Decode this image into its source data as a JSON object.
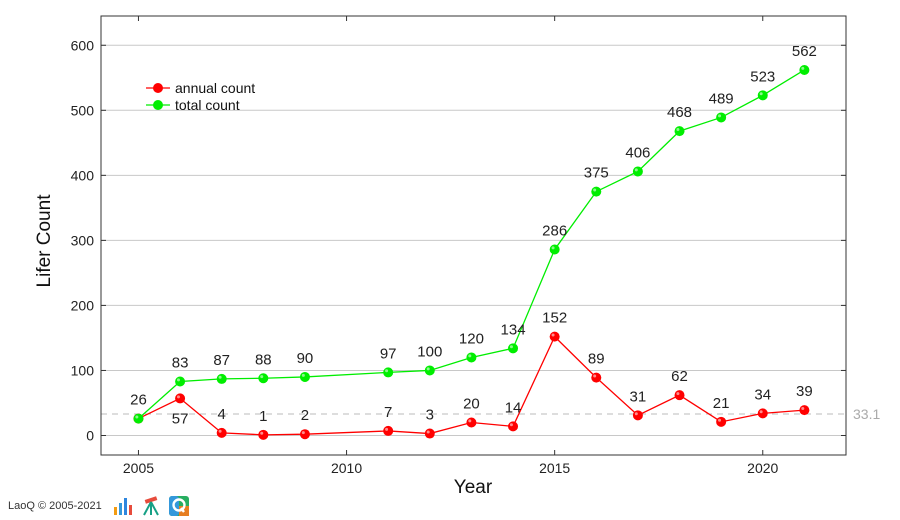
{
  "chart_data": {
    "type": "line",
    "title": "",
    "xlabel": "Year",
    "ylabel": "Lifer Count",
    "xlim": [
      2004.1,
      2022
    ],
    "ylim": [
      -30,
      645
    ],
    "xticks": [
      2005,
      2010,
      2015,
      2020
    ],
    "yticks": [
      0,
      100,
      200,
      300,
      400,
      500,
      600
    ],
    "grid": "horizontal",
    "legend_position": "top-left",
    "series": [
      {
        "name": "annual count",
        "color": "#ff0000",
        "x": [
          2005,
          2006,
          2007,
          2008,
          2009,
          2011,
          2012,
          2013,
          2014,
          2015,
          2016,
          2017,
          2018,
          2019,
          2020,
          2021
        ],
        "values": [
          26,
          57,
          4,
          1,
          2,
          7,
          3,
          20,
          14,
          152,
          89,
          31,
          62,
          21,
          34,
          39
        ],
        "label_pos": [
          "above",
          "below",
          "above",
          "above",
          "above",
          "above",
          "above",
          "above",
          "above",
          "above",
          "above",
          "above",
          "above",
          "above",
          "above",
          "above"
        ]
      },
      {
        "name": "total count",
        "color": "#00ee00",
        "x": [
          2005,
          2006,
          2007,
          2008,
          2009,
          2011,
          2012,
          2013,
          2014,
          2015,
          2016,
          2017,
          2018,
          2019,
          2020,
          2021
        ],
        "values": [
          26,
          83,
          87,
          88,
          90,
          97,
          100,
          120,
          134,
          286,
          375,
          406,
          468,
          489,
          523,
          562
        ],
        "label_pos": [
          "none",
          "above",
          "above",
          "above",
          "above",
          "above",
          "above",
          "above",
          "above",
          "above",
          "above",
          "above",
          "above",
          "above",
          "above",
          "above"
        ]
      }
    ],
    "reference_line": {
      "value": 33.1,
      "label": "33.1",
      "color": "#bbbbbb"
    }
  },
  "footer": {
    "text": "LaoQ © 2005-2021",
    "icons": [
      "bar-chart-icon",
      "tripod-icon",
      "quiz-icon"
    ]
  }
}
